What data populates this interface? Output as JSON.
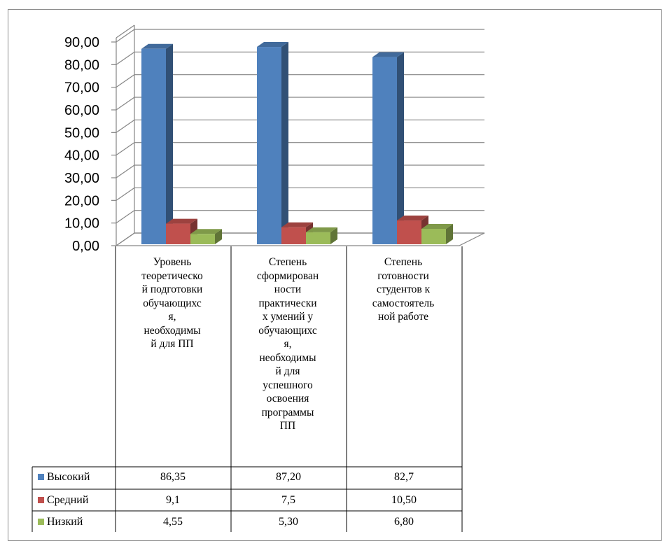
{
  "chart_data": {
    "type": "bar",
    "ylim": [
      0,
      90
    ],
    "yticks": [
      "0,00",
      "10,00",
      "20,00",
      "30,00",
      "40,00",
      "50,00",
      "60,00",
      "70,00",
      "80,00",
      "90,00"
    ],
    "categories": [
      "Уровень\nтеоретическо\nй подготовки\nобучающихс\nя,\nнеобходимы\nй для ПП",
      "Степень\nсформирован\nности\nпрактически\nх умений у\nобучающихс\nя,\nнеобходимы\nй для\nуспешного\nосвоения\nпрограммы\nПП",
      "Степень\nготовности\nстудентов к\nсамостоятель\nной работе"
    ],
    "series": [
      {
        "name": "Высокий",
        "color": "#4f81bd",
        "values": [
          86.35,
          87.2,
          82.7
        ],
        "labels": [
          "86,35",
          "87,20",
          "82,7"
        ]
      },
      {
        "name": "Средний",
        "color": "#c0504d",
        "values": [
          9.1,
          7.5,
          10.5
        ],
        "labels": [
          "9,1",
          "7,5",
          "10,50"
        ]
      },
      {
        "name": "Низкий",
        "color": "#9bbb59",
        "values": [
          4.55,
          5.3,
          6.8
        ],
        "labels": [
          "4,55",
          "5,30",
          "6,80"
        ]
      }
    ],
    "grid": true,
    "legend": "data-table"
  }
}
